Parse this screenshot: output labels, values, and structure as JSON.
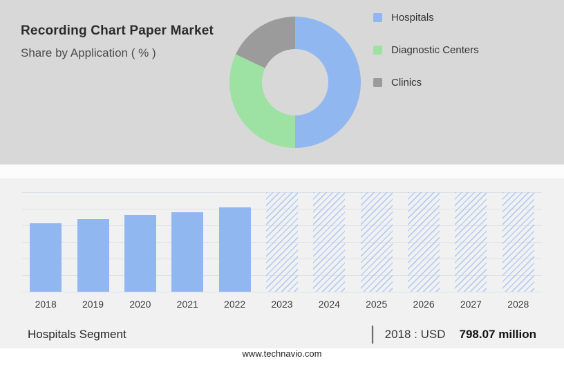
{
  "header": {
    "title": "Recording Chart Paper Market",
    "subtitle": "Share by Application ( % )"
  },
  "footer": {
    "segment_label": "Hospitals Segment",
    "separator": "|",
    "value_prefix": "2018 : USD",
    "value_bold": "798.07 million"
  },
  "website": "www.technavio.com",
  "colors": {
    "header_bg": "#d8d8d8",
    "lower_bg": "#f1f1f1",
    "blue": "#91b7f1",
    "green": "#9de2a2",
    "gray": "#9b9b9b",
    "gridline": "#dde3ea"
  },
  "chart_data": [
    {
      "type": "pie",
      "subtype": "donut",
      "title": "Share by Application ( % )",
      "labels": [
        "Hospitals",
        "Diagnostic Centers",
        "Clinics"
      ],
      "values": [
        50,
        32,
        18
      ],
      "values_note": "estimated from arc angles; no numeric labels shown in image",
      "colors": [
        "#91b7f1",
        "#9de2a2",
        "#9b9b9b"
      ],
      "legend_position": "right"
    },
    {
      "type": "bar",
      "categories": [
        "2018",
        "2019",
        "2020",
        "2021",
        "2022",
        "2023",
        "2024",
        "2025",
        "2026",
        "2027",
        "2028"
      ],
      "bars": [
        {
          "year": "2018",
          "height_pct": 69,
          "style": "solid"
        },
        {
          "year": "2019",
          "height_pct": 73,
          "style": "solid"
        },
        {
          "year": "2020",
          "height_pct": 77,
          "style": "solid"
        },
        {
          "year": "2021",
          "height_pct": 80,
          "style": "solid"
        },
        {
          "year": "2022",
          "height_pct": 85,
          "style": "solid"
        },
        {
          "year": "2023",
          "height_pct": 100,
          "style": "hatch"
        },
        {
          "year": "2024",
          "height_pct": 100,
          "style": "hatch"
        },
        {
          "year": "2025",
          "height_pct": 100,
          "style": "hatch"
        },
        {
          "year": "2026",
          "height_pct": 100,
          "style": "hatch"
        },
        {
          "year": "2027",
          "height_pct": 100,
          "style": "hatch"
        },
        {
          "year": "2028",
          "height_pct": 100,
          "style": "hatch"
        }
      ],
      "known_values": {
        "2018": "USD 798.07 million"
      },
      "note": "solid bars = historical values (heights estimated as % of plot height); hatched full-height bars = forecast years, no values shown; y-axis labels not visible",
      "bar_color": "#91b7f1",
      "hatch_color": "#b5cdf2",
      "grid": true,
      "gridline_count": 7,
      "xlabel": "",
      "ylabel": ""
    }
  ]
}
